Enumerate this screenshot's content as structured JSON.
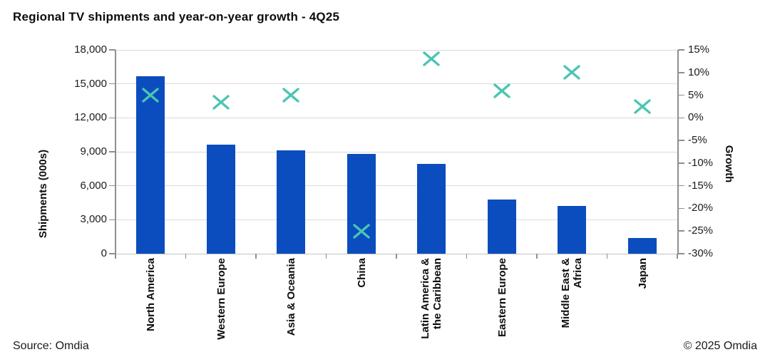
{
  "title": "Regional TV shipments and year-on-year growth - 4Q25",
  "footer": {
    "source": "Source: Omdia",
    "copyright": "© 2025 Omdia"
  },
  "chart_data": {
    "type": "combo",
    "subtypes": [
      "bar",
      "scatter"
    ],
    "title": "Regional TV shipments and year-on-year growth - 4Q25",
    "categories": [
      "North America",
      "Western Europe",
      "Asia & Oceania",
      "China",
      "Latin America & the Caribbean",
      "Eastern Europe",
      "Middle East & Africa",
      "Japan"
    ],
    "category_label_lines": [
      [
        "North America"
      ],
      [
        "Western Europe"
      ],
      [
        "Asia & Oceania"
      ],
      [
        "China"
      ],
      [
        "Latin America &",
        "the Caribbean"
      ],
      [
        "Eastern Europe"
      ],
      [
        "Middle East &",
        "Africa"
      ],
      [
        "Japan"
      ]
    ],
    "series": [
      {
        "name": "Shipments (000s)",
        "type": "bar",
        "axis": "left",
        "color": "#0b4dbe",
        "values": [
          15700,
          9600,
          9100,
          8800,
          7900,
          4800,
          4200,
          1400
        ]
      },
      {
        "name": "Growth",
        "type": "scatter",
        "marker": "x",
        "axis": "right",
        "color": "#49c6b3",
        "values_pct": [
          5,
          3.5,
          5,
          -25,
          13,
          6,
          10,
          2.5
        ]
      }
    ],
    "left_axis": {
      "label": "Shipments (000s)",
      "min": 0,
      "max": 18000,
      "tick_step": 3000,
      "tick_labels": [
        "18,000",
        "15,000",
        "12,000",
        "9,000",
        "6,000",
        "3,000",
        "0"
      ]
    },
    "right_axis": {
      "label": "Growth",
      "min": -30,
      "max": 15,
      "tick_step": 5,
      "tick_labels": [
        "15%",
        "10%",
        "5%",
        "0%",
        "-5%",
        "-10%",
        "-15%",
        "-20%",
        "-25%",
        "-30%"
      ]
    },
    "grid": true,
    "legend": "none"
  }
}
